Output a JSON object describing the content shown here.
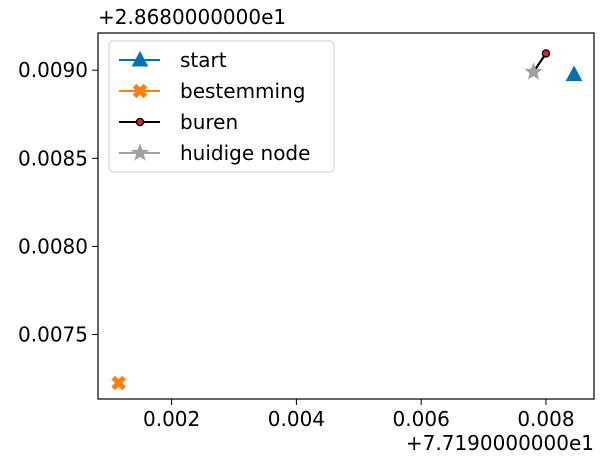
{
  "chart_data": {
    "type": "scatter",
    "title": "",
    "xlabel": "",
    "ylabel": "",
    "x_offset_label": "+7.7190000000e1",
    "y_offset_label": "+2.8680000000e1",
    "xlim": [
      0.00082,
      0.00877
    ],
    "ylim": [
      0.007134,
      0.009211
    ],
    "x_ticks": [
      0.002,
      0.004,
      0.006,
      0.008
    ],
    "x_tick_labels": [
      "0.002",
      "0.004",
      "0.006",
      "0.008"
    ],
    "y_ticks": [
      0.0075,
      0.008,
      0.0085,
      0.009
    ],
    "y_tick_labels": [
      "0.0075",
      "0.0080",
      "0.0085",
      "0.0090"
    ],
    "grid": false,
    "legend_position": "top-left",
    "series": [
      {
        "name": "start",
        "color": "#0072b2",
        "marker": "triangle",
        "line": false,
        "points": [
          [
            0.00845,
            0.008975
          ]
        ]
      },
      {
        "name": "bestemming",
        "color": "#ff7f0e",
        "marker": "x-filled",
        "line": false,
        "points": [
          [
            0.00115,
            0.007225
          ]
        ]
      },
      {
        "name": "buren",
        "color": "#000000",
        "marker_fill": "#d62728",
        "marker": "circle",
        "line": true,
        "points": [
          [
            0.0078,
            0.00899
          ],
          [
            0.008,
            0.009095
          ]
        ]
      },
      {
        "name": "huidige node",
        "color": "#a0a0a0",
        "marker": "star",
        "line": false,
        "points": [
          [
            0.0078,
            0.00899
          ]
        ]
      }
    ]
  }
}
